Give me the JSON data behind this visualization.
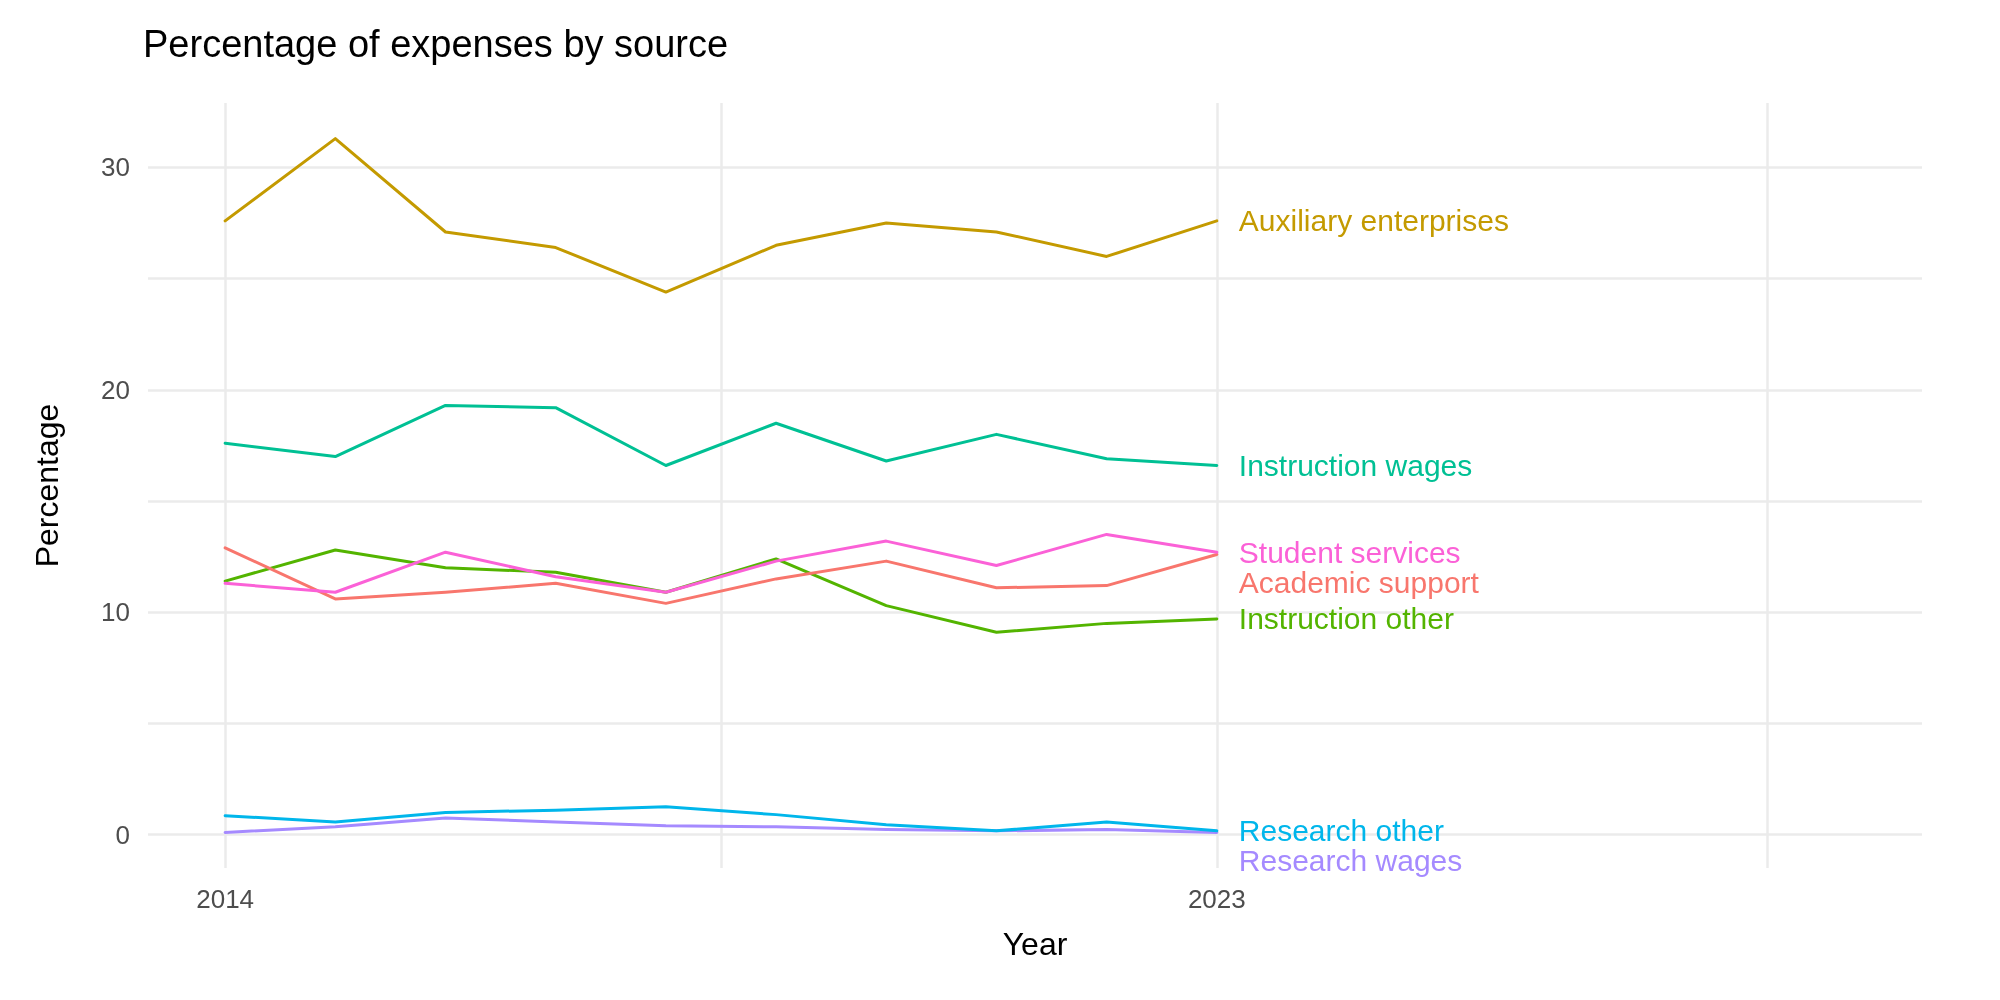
{
  "chart_data": {
    "type": "line",
    "title": "Percentage of expenses by source",
    "xlabel": "Year",
    "ylabel": "Percentage",
    "x": [
      2014,
      2015,
      2016,
      2017,
      2018,
      2019,
      2020,
      2021,
      2022,
      2023
    ],
    "xlim": [
      2013.3,
      2029.4
    ],
    "xticks": [
      2014,
      {
        "value": 2018.5,
        "label": null
      },
      2023,
      {
        "value": 2028,
        "label": null
      }
    ],
    "ylim": [
      -1.5,
      32.9
    ],
    "yticks": [
      0,
      {
        "value": 5,
        "label": null
      },
      10,
      {
        "value": 15,
        "label": null
      },
      20,
      {
        "value": 25,
        "label": null
      },
      30
    ],
    "grid": true,
    "legend": false,
    "marker": "none",
    "line_style": "solid",
    "series": [
      {
        "name": "Auxiliary enterprises",
        "color": "#c49a00",
        "values": [
          27.6,
          31.3,
          27.1,
          26.4,
          24.4,
          26.5,
          27.5,
          27.1,
          26.0,
          27.6
        ]
      },
      {
        "name": "Instruction wages",
        "color": "#00c094",
        "values": [
          17.6,
          17.0,
          19.3,
          19.2,
          16.6,
          18.5,
          16.8,
          18.0,
          16.9,
          16.6
        ]
      },
      {
        "name": "Student services",
        "color": "#fb61d7",
        "values": [
          11.3,
          10.9,
          12.7,
          11.6,
          10.9,
          12.3,
          13.2,
          12.1,
          13.5,
          12.7
        ]
      },
      {
        "name": "Academic support",
        "color": "#f8766d",
        "values": [
          12.9,
          10.6,
          10.9,
          11.3,
          10.4,
          11.5,
          12.3,
          11.1,
          11.2,
          12.6
        ]
      },
      {
        "name": "Instruction other",
        "color": "#53b400",
        "values": [
          11.4,
          12.8,
          12.0,
          11.8,
          10.9,
          12.4,
          10.3,
          9.1,
          9.5,
          9.7
        ]
      },
      {
        "name": "Research other",
        "color": "#00b6eb",
        "values": [
          0.85,
          0.57,
          1.0,
          1.1,
          1.25,
          0.9,
          0.45,
          0.17,
          0.57,
          0.17
        ]
      },
      {
        "name": "Research wages",
        "color": "#a58aff",
        "values": [
          0.1,
          0.35,
          0.75,
          0.57,
          0.4,
          0.35,
          0.23,
          0.17,
          0.23,
          0.1
        ]
      }
    ]
  }
}
